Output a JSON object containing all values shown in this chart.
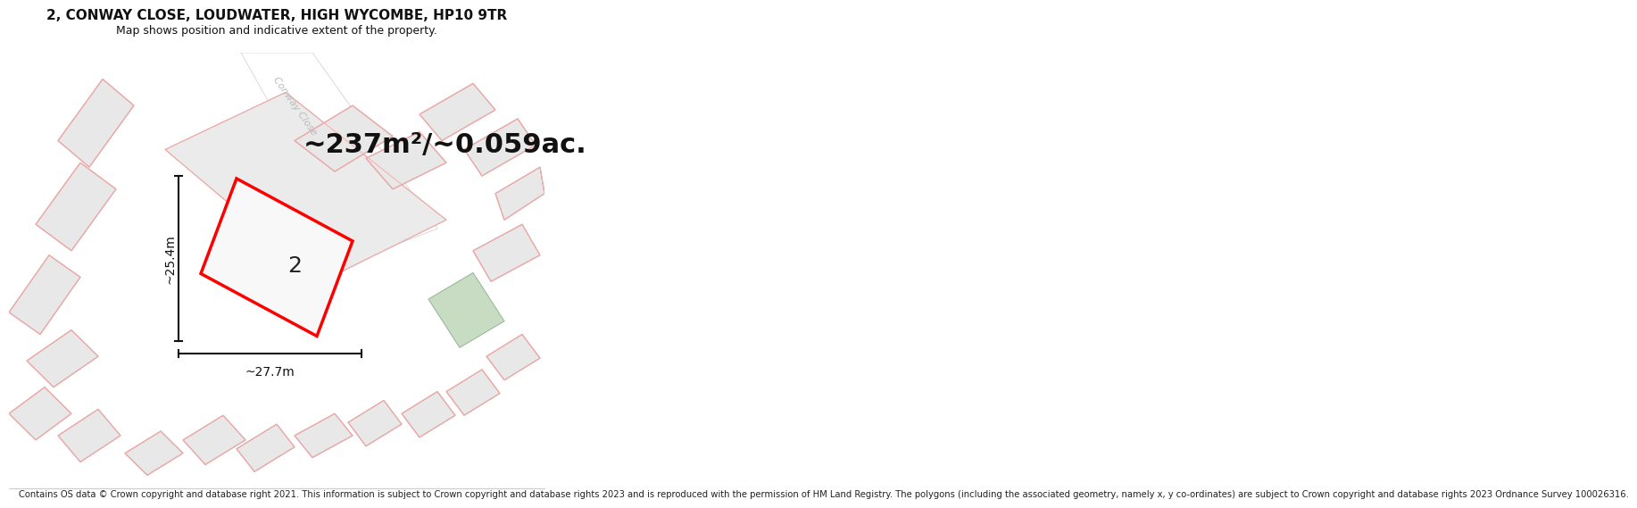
{
  "title_line1": "2, CONWAY CLOSE, LOUDWATER, HIGH WYCOMBE, HP10 9TR",
  "title_line2": "Map shows position and indicative extent of the property.",
  "area_text": "~237m²/~0.059ac.",
  "width_label": "~27.7m",
  "height_label": "~25.4m",
  "number_label": "2",
  "road_label": "Conway Close",
  "footer_text": "Contains OS data © Crown copyright and database right 2021. This information is subject to Crown copyright and database rights 2023 and is reproduced with the permission of HM Land Registry. The polygons (including the associated geometry, namely x, y co-ordinates) are subject to Crown copyright and database rights 2023 Ordnance Survey 100026316.",
  "bg_color": "#ffffff",
  "map_bg": "#f5f5f5",
  "plot_fill": "#f0f0f0",
  "plot_outline": "#ff0000",
  "building_fill": "#e8e8e8",
  "building_outline": "#999999",
  "pink_outline": "#ffaaaa",
  "green_fill": "#c8dcc4",
  "road_color": "#ffffff",
  "title_fontsize": 11,
  "subtitle_fontsize": 9,
  "area_fontsize": 22,
  "label_fontsize": 10,
  "number_fontsize": 18,
  "road_fontsize": 8,
  "footer_fontsize": 7.2
}
